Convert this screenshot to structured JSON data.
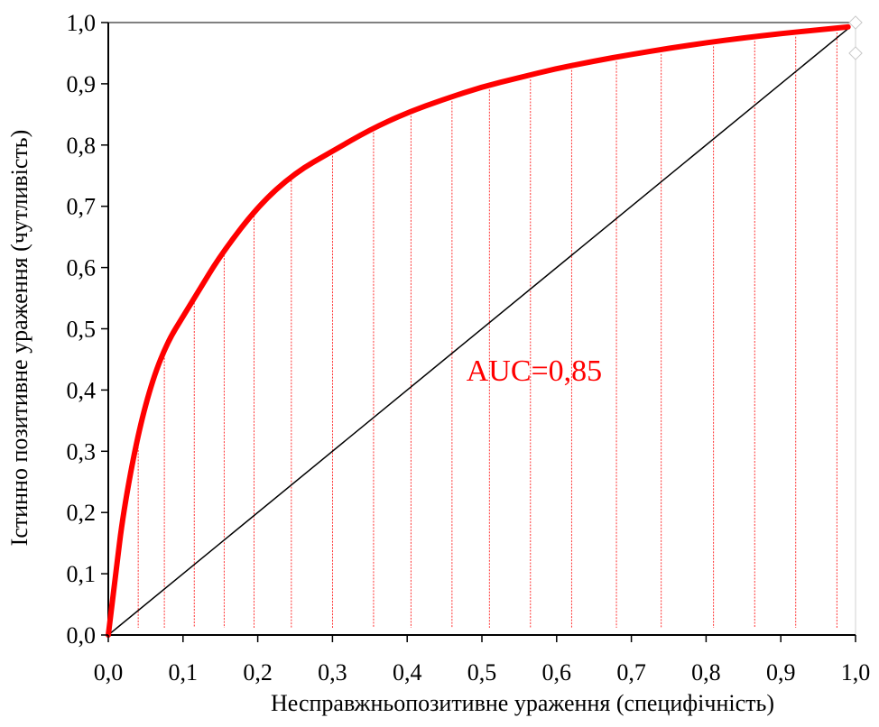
{
  "chart_data": {
    "type": "line",
    "title": "",
    "xlabel": "Несправжньопозитивне ураження (специфічність)",
    "ylabel": "Істинно позитивне ураження (чутливість)",
    "xlim": [
      0,
      1
    ],
    "ylim": [
      0,
      1
    ],
    "x_ticks": [
      "0,0",
      "0,1",
      "0,2",
      "0,3",
      "0,4",
      "0,5",
      "0,6",
      "0,7",
      "0,8",
      "0,9",
      "1,0"
    ],
    "y_ticks": [
      "0,0",
      "0,1",
      "0,2",
      "0,3",
      "0,4",
      "0,5",
      "0,6",
      "0,7",
      "0,8",
      "0,9",
      "1,0"
    ],
    "grid": false,
    "annotation": {
      "text": "AUC=0,85",
      "x": 0.57,
      "y": 0.43
    },
    "series": [
      {
        "role": "roc-curve",
        "x": [
          0.0,
          0.01,
          0.02,
          0.04,
          0.06,
          0.08,
          0.1,
          0.12,
          0.15,
          0.2,
          0.25,
          0.3,
          0.35,
          0.4,
          0.45,
          0.5,
          0.55,
          0.6,
          0.65,
          0.7,
          0.75,
          0.8,
          0.85,
          0.9,
          0.95,
          0.99
        ],
        "y": [
          0.0,
          0.1,
          0.2,
          0.33,
          0.42,
          0.48,
          0.52,
          0.56,
          0.62,
          0.7,
          0.755,
          0.79,
          0.825,
          0.853,
          0.875,
          0.895,
          0.91,
          0.925,
          0.937,
          0.948,
          0.958,
          0.967,
          0.975,
          0.982,
          0.988,
          0.993
        ],
        "color": "#ff0000"
      },
      {
        "role": "reference-diagonal",
        "x": [
          0.0,
          0.99
        ],
        "y": [
          0.0,
          0.99
        ],
        "color": "#000000"
      }
    ],
    "hatch": {
      "x": [
        0.04,
        0.075,
        0.115,
        0.155,
        0.195,
        0.245,
        0.3,
        0.355,
        0.405,
        0.46,
        0.51,
        0.565,
        0.62,
        0.68,
        0.74,
        0.81,
        0.865,
        0.92,
        0.975
      ],
      "color": "#ff0000"
    }
  }
}
